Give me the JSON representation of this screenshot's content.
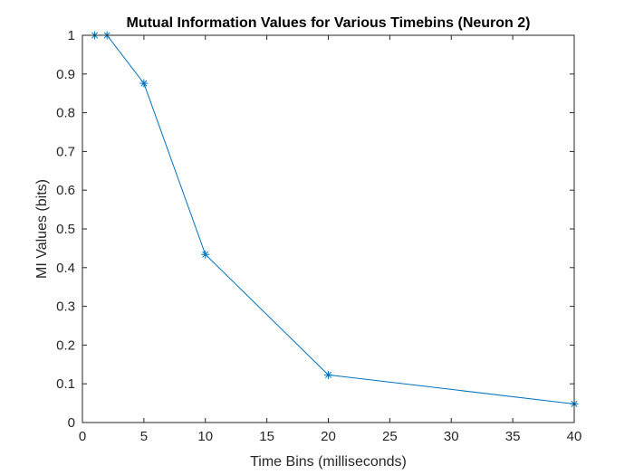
{
  "chart_data": {
    "type": "line",
    "title": "Mutual Information Values for Various Timebins (Neuron 2)",
    "xlabel": "Time Bins (milliseconds)",
    "ylabel": "MI Values (bits)",
    "xlim": [
      0,
      40
    ],
    "ylim": [
      0,
      1
    ],
    "xticks": [
      "0",
      "5",
      "10",
      "15",
      "20",
      "25",
      "30",
      "35",
      "40"
    ],
    "yticks": [
      "0",
      "0.1",
      "0.2",
      "0.3",
      "0.4",
      "0.5",
      "0.6",
      "0.7",
      "0.8",
      "0.9",
      "1"
    ],
    "grid": false,
    "marker": "asterisk",
    "series": [
      {
        "x": [
          1,
          2,
          5,
          10,
          20,
          40
        ],
        "values": [
          1.0,
          1.0,
          0.876,
          0.434,
          0.123,
          0.048
        ]
      }
    ],
    "colors": {
      "line": "#0072BD",
      "axes": "#262626"
    }
  }
}
